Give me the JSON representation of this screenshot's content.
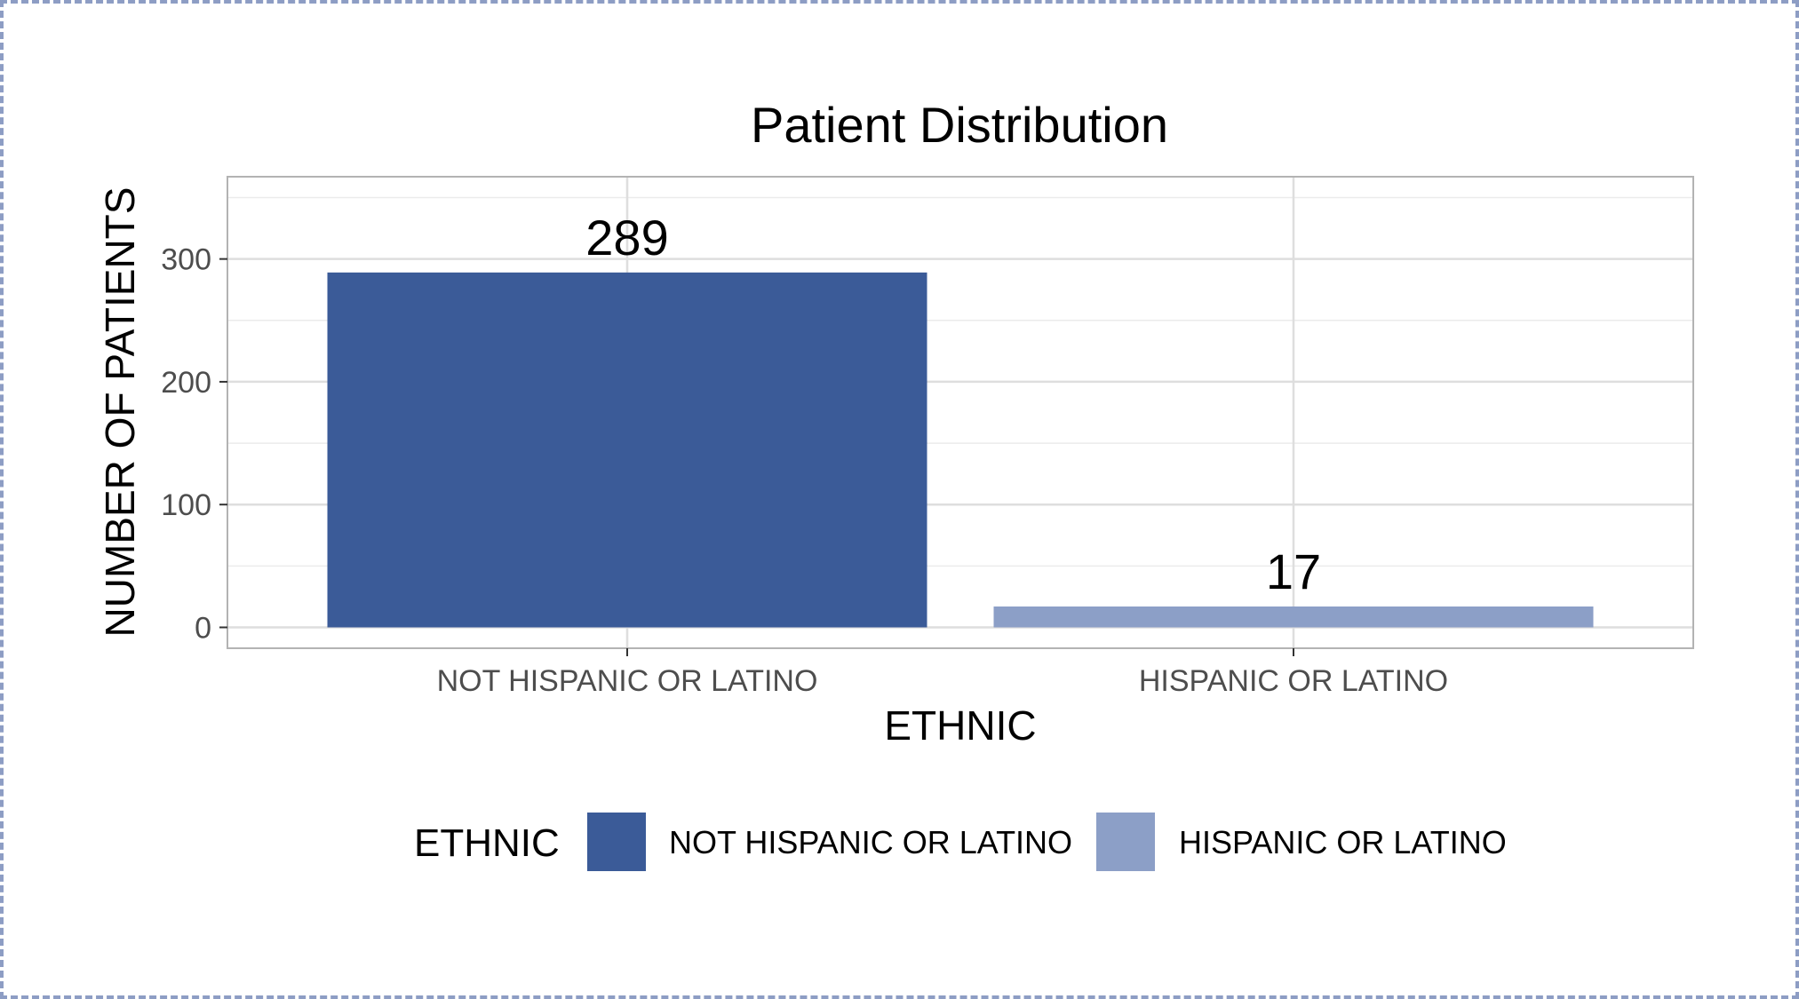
{
  "chart_data": {
    "type": "bar",
    "title": "Patient Distribution",
    "xlabel": "ETHNIC",
    "ylabel": "NUMBER OF PATIENTS",
    "categories": [
      "NOT HISPANIC OR LATINO",
      "HISPANIC OR LATINO"
    ],
    "values": [
      289,
      17
    ],
    "colors": [
      "#3b5b98",
      "#8c9fc7"
    ],
    "data_labels": [
      "289",
      "17"
    ],
    "ylim": [
      -17,
      367
    ],
    "yticks": [
      0,
      100,
      200,
      300
    ],
    "ytick_labels": [
      "0",
      "100",
      "200",
      "300"
    ],
    "grid": true,
    "legend": {
      "title": "ETHNIC",
      "position": "bottom",
      "entries": [
        "NOT HISPANIC OR LATINO",
        "HISPANIC OR LATINO"
      ]
    }
  }
}
